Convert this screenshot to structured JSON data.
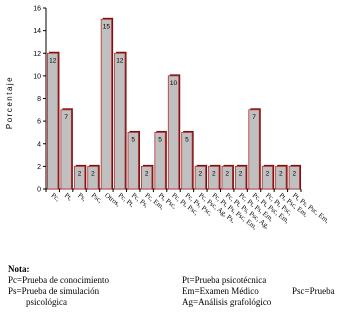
{
  "chart_data": {
    "type": "bar",
    "title": "",
    "xlabel": "",
    "ylabel": "Porcentaje",
    "ylim": [
      0,
      16
    ],
    "yticks": [
      0,
      2,
      4,
      6,
      8,
      10,
      12,
      14,
      16
    ],
    "grid": false,
    "categories": [
      "Pc",
      "Pt",
      "Ps",
      "Psc",
      "Otros",
      "Pc, Pt",
      "Pc, Ps",
      "Pc, Em",
      "Pt, Psc",
      "Pc, Pt, Psc",
      "Pc, Ps, Psc",
      "Pc, Psc, Ag, Ps",
      "Pc, Pt, Ps, Psc, Em",
      "Pc, Pt, Ps, Psc, Ag",
      "Pc, Pt, Ps, Em",
      "Pc, Pt, Psc, Em",
      "Pc, Pt, Psc",
      "Pt, Psc, Em",
      "Pt, Ps, Psc, Em"
    ],
    "values": [
      12,
      7,
      2,
      2,
      15,
      12,
      5,
      2,
      5,
      10,
      5,
      2,
      2,
      2,
      2,
      7,
      2,
      2,
      2
    ],
    "bar_fill": "#c0c0c0",
    "bar_edge": "#b03030",
    "bar_shadow": "#7a1010"
  },
  "note": {
    "title": "Nota:",
    "items": [
      "Pc=Prueba de conocimiento",
      "Ps=Prueba de simulación",
      "psicológica",
      "Pt=Prueba psicotécnica",
      "Em=Examen Médico",
      "Psc=Prueba",
      "Ag=Análisis grafológico"
    ]
  }
}
